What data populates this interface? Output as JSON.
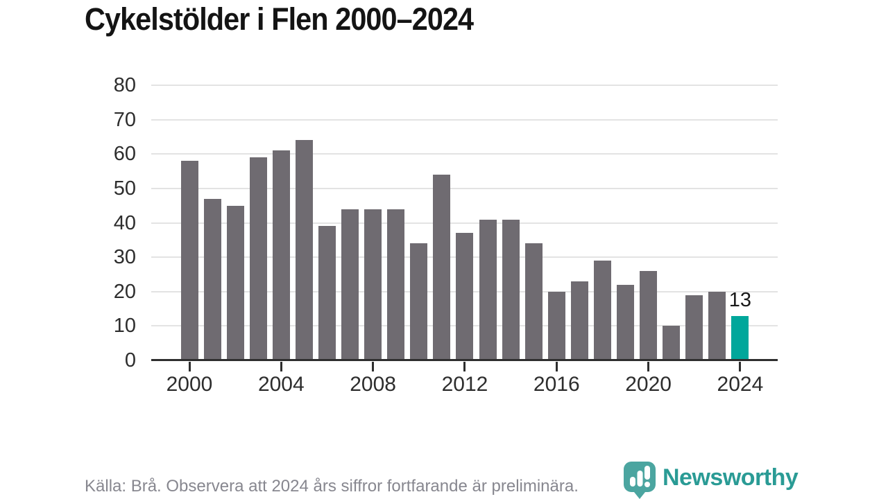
{
  "title": "Cykelstölder i Flen 2000–2024",
  "chart_data": {
    "type": "bar",
    "title": "Cykelstölder i Flen 2000–2024",
    "x": [
      2000,
      2001,
      2002,
      2003,
      2004,
      2005,
      2006,
      2007,
      2008,
      2009,
      2010,
      2011,
      2012,
      2013,
      2014,
      2015,
      2016,
      2017,
      2018,
      2019,
      2020,
      2021,
      2022,
      2023,
      2024
    ],
    "values": [
      58,
      47,
      45,
      59,
      61,
      64,
      39,
      44,
      44,
      44,
      34,
      54,
      37,
      41,
      41,
      34,
      20,
      23,
      29,
      22,
      26,
      10,
      19,
      20,
      13
    ],
    "highlight_year": 2024,
    "highlight_value_label": "13",
    "xlabel": "",
    "ylabel": "",
    "ylim": [
      0,
      80
    ],
    "yticks": [
      0,
      10,
      20,
      30,
      40,
      50,
      60,
      70,
      80
    ],
    "xticks": [
      2000,
      2004,
      2008,
      2012,
      2016,
      2020,
      2024
    ],
    "grid": "horizontal",
    "legend": "none",
    "bar_color": "#6f6b71",
    "highlight_color": "#00a79b"
  },
  "footer": {
    "source_note": "Källa: Brå. Observera att 2024 års siffror fortfarande är preliminära.",
    "logo_text": "Newsworthy"
  },
  "colors": {
    "bar_gray": "#6f6b71",
    "highlight_teal": "#00a79b",
    "logo_teal": "#2a9b95",
    "logo_icon_teal": "#4ba5a0",
    "gridline": "#e3e3e3",
    "axis": "#2e2e2e",
    "label_text": "#2d2d2d",
    "footer_text": "#87878f"
  },
  "icons": {
    "logo_icon": "newsworthy-barchart-pin-icon"
  }
}
